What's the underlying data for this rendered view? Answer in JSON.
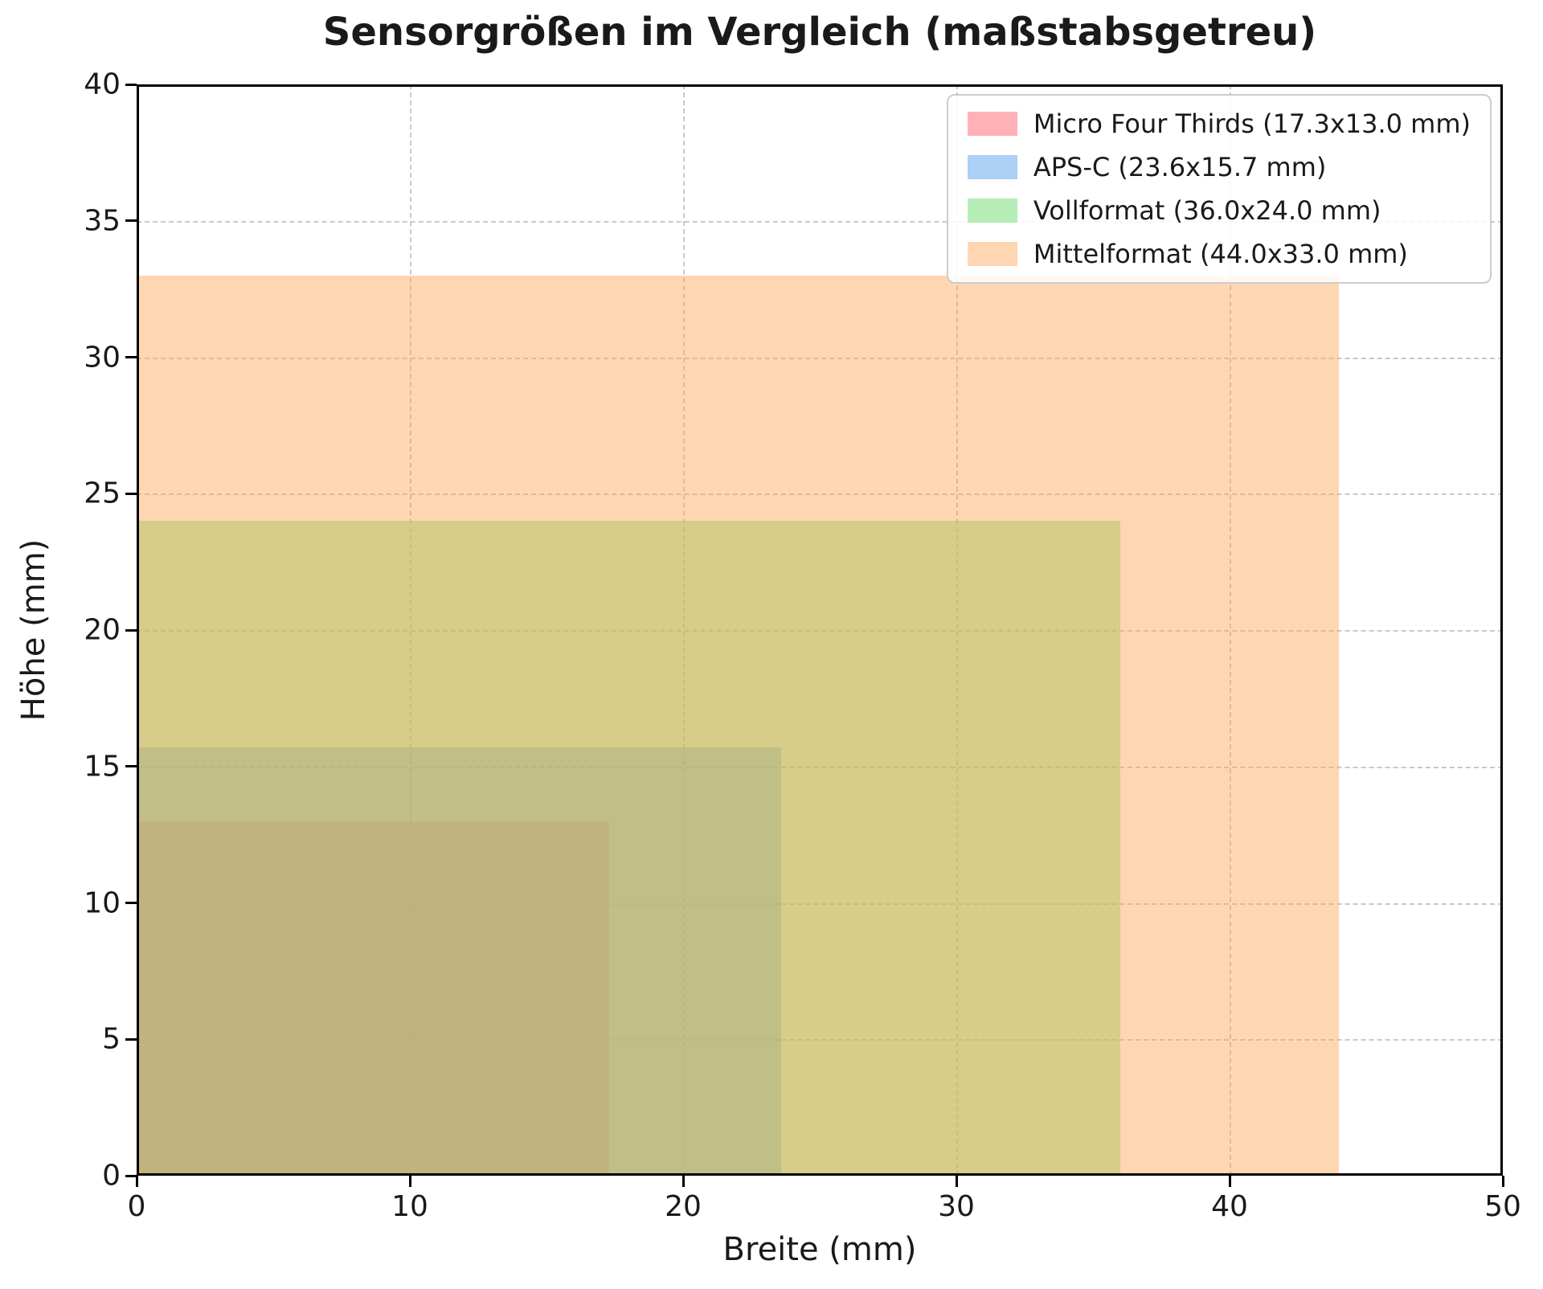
{
  "chart_data": {
    "type": "area",
    "title": "Sensorgrößen im Vergleich (maßstabsgetreu)",
    "xlabel": "Breite (mm)",
    "ylabel": "Höhe (mm)",
    "xlim": [
      0,
      50
    ],
    "ylim": [
      0,
      40
    ],
    "xticks": [
      0,
      10,
      20,
      30,
      40,
      50
    ],
    "yticks": [
      0,
      5,
      10,
      15,
      20,
      25,
      30,
      35,
      40
    ],
    "grid": true,
    "grid_style": "dashed",
    "grid_color": "#c9c9c9",
    "legend_position": "upper right",
    "series": [
      {
        "name": "Micro Four Thirds (17.3x13.0 mm)",
        "sensor": "Micro Four Thirds",
        "width_mm": 17.3,
        "height_mm": 13.0,
        "fill": "rgba(255, 70, 80, 0.42)",
        "base_color": "#ff4650"
      },
      {
        "name": "APS-C (23.6x15.7 mm)",
        "sensor": "APS-C",
        "width_mm": 23.6,
        "height_mm": 15.7,
        "fill": "rgba(70, 150, 235, 0.45)",
        "base_color": "#4696eb"
      },
      {
        "name": "Vollformat (36.0x24.0 mm)",
        "sensor": "Vollformat",
        "width_mm": 36.0,
        "height_mm": 24.0,
        "fill": "rgba(110, 220, 110, 0.50)",
        "base_color": "#6edc6e"
      },
      {
        "name": "Mittelformat (44.0x33.0 mm)",
        "sensor": "Mittelformat",
        "width_mm": 44.0,
        "height_mm": 33.0,
        "fill": "rgba(255, 165, 85, 0.45)",
        "base_color": "#ffa555"
      }
    ]
  }
}
